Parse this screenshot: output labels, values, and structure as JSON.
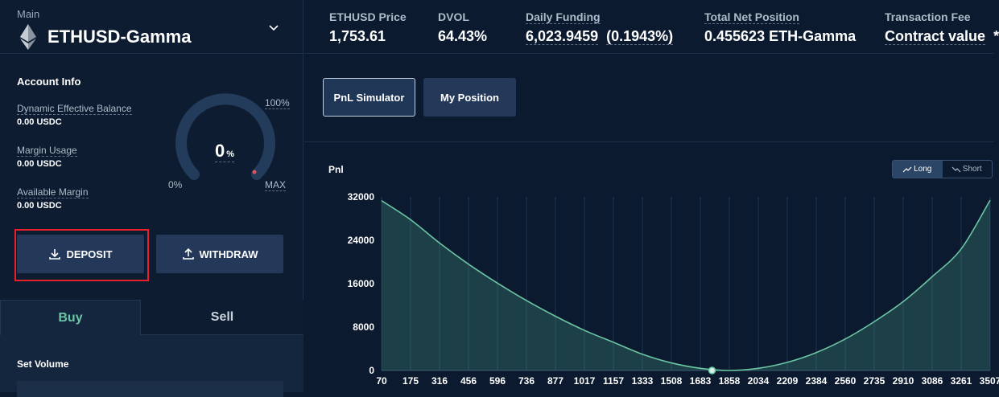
{
  "panel": {
    "account_type": "Main",
    "pair": "ETHUSD-Gamma"
  },
  "account_info": {
    "title": "Account Info",
    "dynamic_effective_balance": {
      "label": "Dynamic Effective Balance",
      "value": "0.00 USDC"
    },
    "margin_usage": {
      "label": "Margin Usage",
      "value": "0.00 USDC"
    },
    "available_margin": {
      "label": "Available Margin",
      "value": "0.00 USDC"
    },
    "gauge": {
      "percent_value": "0",
      "percent_sign": "%",
      "min_label": "0%",
      "max_top_label": "100%",
      "max_label": "MAX",
      "fill": 0
    }
  },
  "actions": {
    "deposit": "DEPOSIT",
    "withdraw": "WITHDRAW"
  },
  "trade_tabs": {
    "buy": "Buy",
    "sell": "Sell"
  },
  "order": {
    "set_volume_label": "Set Volume"
  },
  "header_stats": {
    "price": {
      "label": "ETHUSD Price",
      "value": "1,753.61"
    },
    "dvol": {
      "label": "DVOL",
      "value": "64.43%"
    },
    "funding": {
      "label": "Daily Funding",
      "value": "6,023.9459",
      "pct": "(0.1943%)"
    },
    "net_position": {
      "label": "Total Net Position",
      "value": "0.455623 ETH-Gamma"
    },
    "fee": {
      "label": "Transaction Fee",
      "value": "Contract value",
      "suffix": "*"
    }
  },
  "pnl_tabs": {
    "simulator": "PnL Simulator",
    "my_position": "My Position",
    "active": "simulator"
  },
  "chart_toggle": {
    "long": "Long",
    "short": "Short",
    "active": "long"
  },
  "colors": {
    "accent_green": "#6bc6a5",
    "bg": "#0b1a2e",
    "button": "#24395a",
    "highlight": "#e8202a"
  },
  "chart_data": {
    "type": "area",
    "title": "Pnl",
    "x": [
      70,
      175,
      316,
      456,
      596,
      736,
      877,
      1017,
      1157,
      1333,
      1508,
      1683,
      1858,
      2034,
      2209,
      2384,
      2560,
      2735,
      2910,
      3086,
      3261,
      3507
    ],
    "x_tick_labels": [
      "70",
      "175",
      "316",
      "456",
      "596",
      "736",
      "877",
      "1017",
      "1157",
      "1333",
      "1508",
      "1683",
      "1858",
      "2034",
      "2209",
      "2384",
      "2560",
      "2735",
      "2910",
      "3086",
      "3261",
      "3507"
    ],
    "y_ticks": [
      "32000",
      "24000",
      "16000",
      "8000",
      "0"
    ],
    "y_tick_values": [
      32000,
      24000,
      16000,
      8000,
      0
    ],
    "ylim": [
      0,
      32000
    ],
    "series": [
      {
        "values": [
          31300,
          27800,
          23500,
          19600,
          16100,
          12900,
          10000,
          7400,
          5200,
          3000,
          1400,
          400,
          0,
          400,
          1500,
          3300,
          5800,
          9000,
          12700,
          17300,
          22400,
          31400
        ]
      }
    ],
    "marker_x": 1753.61,
    "marker_y": 0,
    "grid": "vertical"
  }
}
